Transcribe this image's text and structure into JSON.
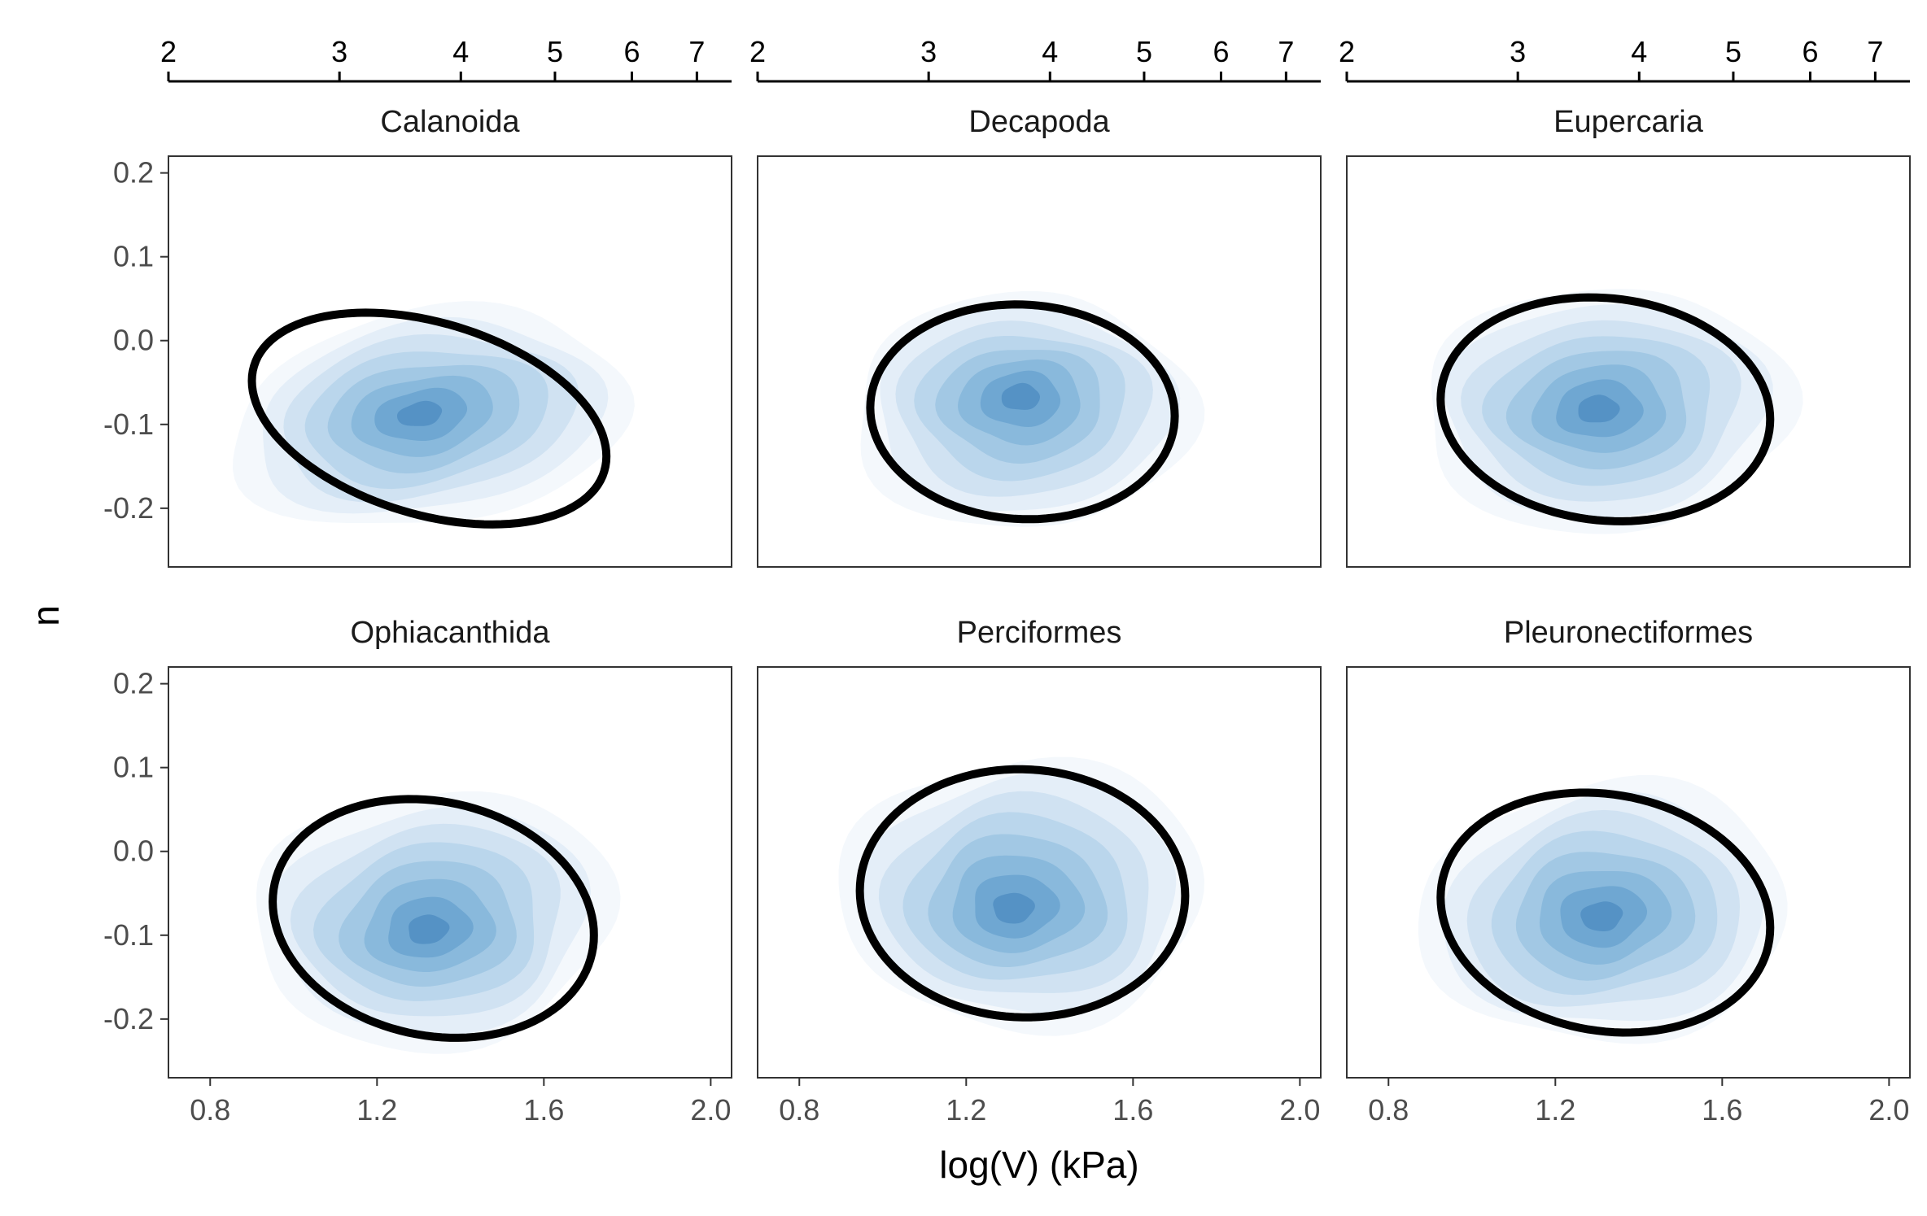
{
  "chart_data": {
    "type": "density-contour-facet",
    "xlabel": "log(V) (kPa)",
    "ylabel": "n",
    "xlim": [
      0.7,
      2.05
    ],
    "ylim": [
      -0.27,
      0.22
    ],
    "x_ticks": [
      0.8,
      1.2,
      1.6,
      2.0
    ],
    "x_tick_labels": [
      "0.8",
      "1.2",
      "1.6",
      "2.0"
    ],
    "y_ticks": [
      0.2,
      0.1,
      0.0,
      -0.1,
      -0.2
    ],
    "y_tick_labels": [
      "0.2",
      "0.1",
      "0.0",
      "-0.1",
      "-0.2"
    ],
    "secondary_x_axis": {
      "position": "top",
      "scale": "log10",
      "ticks": [
        2,
        3,
        4,
        5,
        6,
        7
      ],
      "tick_labels": [
        "2",
        "3",
        "4",
        "5",
        "6",
        "7"
      ]
    },
    "fill_palette": [
      "#f4f8fc",
      "#e4eef8",
      "#d0e2f2",
      "#bad6ec",
      "#a2c8e4",
      "#89b9dc",
      "#6fa7d2",
      "#5592c5"
    ],
    "ellipse_color": "#000000",
    "panels": [
      {
        "title": "Calanoida",
        "density_peak": {
          "x": 1.3,
          "y": -0.087
        },
        "ellipse": {
          "center_x": 1.325,
          "center_y": -0.093,
          "semi_x": 0.425,
          "semi_y": 0.118,
          "tilt": -0.045
        }
      },
      {
        "title": "Decapoda",
        "density_peak": {
          "x": 1.33,
          "y": -0.065
        },
        "ellipse": {
          "center_x": 1.335,
          "center_y": -0.085,
          "semi_x": 0.365,
          "semi_y": 0.128,
          "tilt": -0.005
        }
      },
      {
        "title": "Eupercaria",
        "density_peak": {
          "x": 1.3,
          "y": -0.082
        },
        "ellipse": {
          "center_x": 1.32,
          "center_y": -0.082,
          "semi_x": 0.395,
          "semi_y": 0.133,
          "tilt": -0.012
        }
      },
      {
        "title": "Ophiacanthida",
        "density_peak": {
          "x": 1.32,
          "y": -0.095
        },
        "ellipse": {
          "center_x": 1.335,
          "center_y": -0.08,
          "semi_x": 0.385,
          "semi_y": 0.141,
          "tilt": -0.02
        }
      },
      {
        "title": "Perciformes",
        "density_peak": {
          "x": 1.31,
          "y": -0.07
        },
        "ellipse": {
          "center_x": 1.335,
          "center_y": -0.05,
          "semi_x": 0.39,
          "semi_y": 0.148,
          "tilt": -0.003
        }
      },
      {
        "title": "Pleuronectiformes",
        "density_peak": {
          "x": 1.31,
          "y": -0.078
        },
        "ellipse": {
          "center_x": 1.32,
          "center_y": -0.073,
          "semi_x": 0.395,
          "semi_y": 0.142,
          "tilt": -0.018
        }
      }
    ]
  }
}
